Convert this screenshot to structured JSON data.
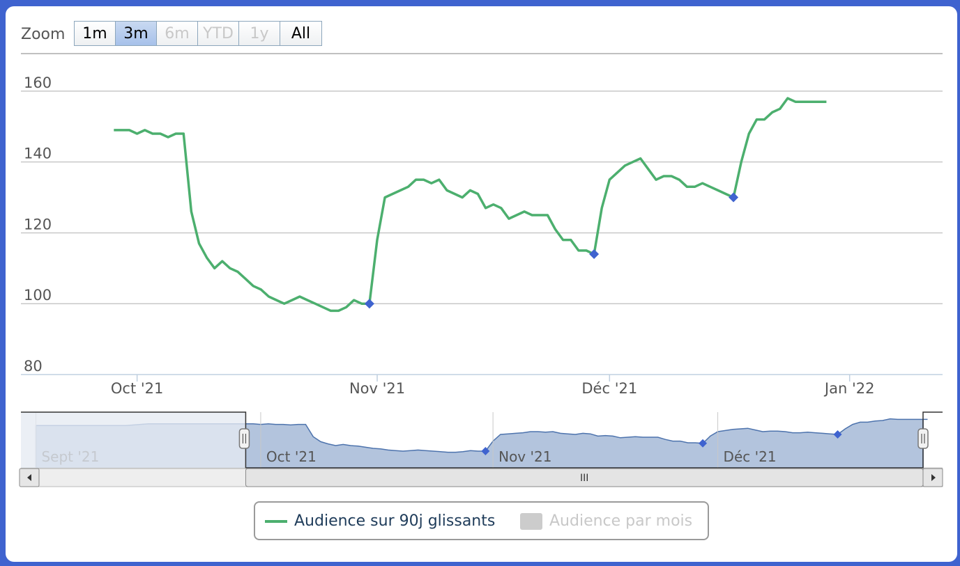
{
  "zoom": {
    "label": "Zoom",
    "buttons": [
      {
        "label": "1m",
        "state": "normal"
      },
      {
        "label": "3m",
        "state": "active"
      },
      {
        "label": "6m",
        "state": "disabled"
      },
      {
        "label": "YTD",
        "state": "disabled"
      },
      {
        "label": "1y",
        "state": "disabled"
      },
      {
        "label": "All",
        "state": "normal"
      }
    ]
  },
  "colors": {
    "line": "#4caf6e",
    "marker": "#3f63cf",
    "navigator_fill": "#b3c4dd",
    "navigator_line": "#4d73ad",
    "grid": "#c8c8c8",
    "frame": "#3f63cf"
  },
  "chart_data": {
    "type": "line",
    "title": "",
    "ylim": [
      80,
      170
    ],
    "yticks": [
      80,
      100,
      120,
      140,
      160
    ],
    "xticks": [
      {
        "date": "2021-10-01",
        "label": "Oct '21"
      },
      {
        "date": "2021-11-01",
        "label": "Nov '21"
      },
      {
        "date": "2021-12-01",
        "label": "Déc '21"
      },
      {
        "date": "2022-01-01",
        "label": "Jan '22"
      }
    ],
    "xrange": [
      "2021-09-16",
      "2022-01-13"
    ],
    "series": [
      {
        "name": "Audience sur 90j glissants",
        "color": "#4caf6e",
        "visible": true,
        "points": [
          [
            "2021-09-28",
            149
          ],
          [
            "2021-09-29",
            149
          ],
          [
            "2021-09-30",
            149
          ],
          [
            "2021-10-01",
            148
          ],
          [
            "2021-10-02",
            149
          ],
          [
            "2021-10-03",
            148
          ],
          [
            "2021-10-04",
            148
          ],
          [
            "2021-10-05",
            147
          ],
          [
            "2021-10-06",
            148
          ],
          [
            "2021-10-07",
            148
          ],
          [
            "2021-10-08",
            126
          ],
          [
            "2021-10-09",
            117
          ],
          [
            "2021-10-10",
            113
          ],
          [
            "2021-10-11",
            110
          ],
          [
            "2021-10-12",
            112
          ],
          [
            "2021-10-13",
            110
          ],
          [
            "2021-10-14",
            109
          ],
          [
            "2021-10-15",
            107
          ],
          [
            "2021-10-16",
            105
          ],
          [
            "2021-10-17",
            104
          ],
          [
            "2021-10-18",
            102
          ],
          [
            "2021-10-19",
            101
          ],
          [
            "2021-10-20",
            100
          ],
          [
            "2021-10-21",
            101
          ],
          [
            "2021-10-22",
            102
          ],
          [
            "2021-10-23",
            101
          ],
          [
            "2021-10-24",
            100
          ],
          [
            "2021-10-25",
            99
          ],
          [
            "2021-10-26",
            98
          ],
          [
            "2021-10-27",
            98
          ],
          [
            "2021-10-28",
            99
          ],
          [
            "2021-10-29",
            101
          ],
          [
            "2021-10-30",
            100
          ],
          [
            "2021-10-31",
            100
          ],
          [
            "2021-11-01",
            118
          ],
          [
            "2021-11-02",
            130
          ],
          [
            "2021-11-03",
            131
          ],
          [
            "2021-11-04",
            132
          ],
          [
            "2021-11-05",
            133
          ],
          [
            "2021-11-06",
            135
          ],
          [
            "2021-11-07",
            135
          ],
          [
            "2021-11-08",
            134
          ],
          [
            "2021-11-09",
            135
          ],
          [
            "2021-11-10",
            132
          ],
          [
            "2021-11-11",
            131
          ],
          [
            "2021-11-12",
            130
          ],
          [
            "2021-11-13",
            132
          ],
          [
            "2021-11-14",
            131
          ],
          [
            "2021-11-15",
            127
          ],
          [
            "2021-11-16",
            128
          ],
          [
            "2021-11-17",
            127
          ],
          [
            "2021-11-18",
            124
          ],
          [
            "2021-11-19",
            125
          ],
          [
            "2021-11-20",
            126
          ],
          [
            "2021-11-21",
            125
          ],
          [
            "2021-11-22",
            125
          ],
          [
            "2021-11-23",
            125
          ],
          [
            "2021-11-24",
            121
          ],
          [
            "2021-11-25",
            118
          ],
          [
            "2021-11-26",
            118
          ],
          [
            "2021-11-27",
            115
          ],
          [
            "2021-11-28",
            115
          ],
          [
            "2021-11-29",
            114
          ],
          [
            "2021-11-30",
            127
          ],
          [
            "2021-12-01",
            135
          ],
          [
            "2021-12-02",
            137
          ],
          [
            "2021-12-03",
            139
          ],
          [
            "2021-12-04",
            140
          ],
          [
            "2021-12-05",
            141
          ],
          [
            "2021-12-06",
            138
          ],
          [
            "2021-12-07",
            135
          ],
          [
            "2021-12-08",
            136
          ],
          [
            "2021-12-09",
            136
          ],
          [
            "2021-12-10",
            135
          ],
          [
            "2021-12-11",
            133
          ],
          [
            "2021-12-12",
            133
          ],
          [
            "2021-12-13",
            134
          ],
          [
            "2021-12-14",
            133
          ],
          [
            "2021-12-15",
            132
          ],
          [
            "2021-12-16",
            131
          ],
          [
            "2021-12-17",
            130
          ],
          [
            "2021-12-18",
            140
          ],
          [
            "2021-12-19",
            148
          ],
          [
            "2021-12-20",
            152
          ],
          [
            "2021-12-21",
            152
          ],
          [
            "2021-12-22",
            154
          ],
          [
            "2021-12-23",
            155
          ],
          [
            "2021-12-24",
            158
          ],
          [
            "2021-12-25",
            157
          ],
          [
            "2021-12-26",
            157
          ],
          [
            "2021-12-27",
            157
          ],
          [
            "2021-12-28",
            157
          ],
          [
            "2021-12-29",
            157
          ]
        ],
        "markers": [
          [
            "2021-10-31",
            100
          ],
          [
            "2021-11-29",
            114
          ],
          [
            "2021-12-17",
            130
          ]
        ]
      },
      {
        "name": "Audience par mois",
        "color": "#cccccc",
        "visible": false
      }
    ],
    "legend": "bottom-center"
  },
  "navigator": {
    "labels": [
      {
        "date": "2021-09-01",
        "label": "Sept '21"
      },
      {
        "date": "2021-10-01",
        "label": "Oct '21"
      },
      {
        "date": "2021-11-01",
        "label": "Nov '21"
      },
      {
        "date": "2021-12-01",
        "label": "Déc '21"
      }
    ],
    "range": [
      "2021-08-30",
      "2021-12-31"
    ],
    "selection": [
      "2021-09-29",
      "2021-12-31"
    ],
    "scroll_handle": "III"
  },
  "legend": {
    "items": [
      {
        "label": "Audience sur 90j glissants",
        "visible": true
      },
      {
        "label": "Audience par mois",
        "visible": false
      }
    ]
  }
}
